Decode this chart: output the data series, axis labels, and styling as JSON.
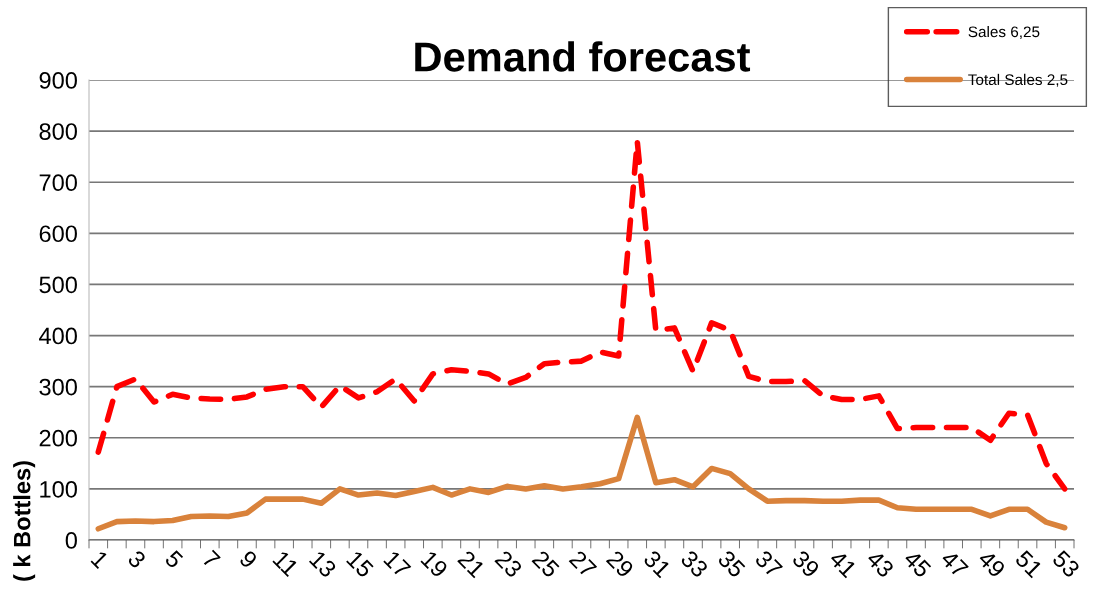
{
  "chart_data": {
    "type": "line",
    "title": "Demand forecast",
    "ylabel": "( k Bottles)",
    "categories": [
      "1",
      null,
      "3",
      null,
      "5",
      null,
      "7",
      null,
      "9",
      null,
      "11",
      null,
      "13",
      null,
      "15",
      null,
      "17",
      null,
      "19",
      null,
      "21",
      null,
      "23",
      null,
      "25",
      null,
      "27",
      null,
      "29",
      null,
      "31",
      null,
      "33",
      null,
      "35",
      null,
      "37",
      null,
      "39",
      null,
      "41",
      null,
      "43",
      null,
      "45",
      null,
      "47",
      null,
      "49",
      null,
      "51",
      null,
      "53"
    ],
    "series": [
      {
        "name": "Sales 6,25",
        "color": "#ff0000",
        "line_style": "dashed",
        "values": [
          172,
          300,
          315,
          270,
          285,
          278,
          276,
          275,
          280,
          295,
          300,
          300,
          260,
          302,
          278,
          290,
          315,
          272,
          325,
          333,
          330,
          325,
          305,
          318,
          345,
          348,
          350,
          368,
          360,
          780,
          410,
          415,
          330,
          425,
          410,
          320,
          310,
          310,
          312,
          282,
          275,
          275,
          282,
          218,
          220,
          220,
          220,
          220,
          195,
          248,
          245,
          150,
          100
        ]
      },
      {
        "name": "Total Sales 2,5",
        "color": "#d9823b",
        "line_style": "solid",
        "values": [
          22,
          36,
          37,
          36,
          38,
          46,
          47,
          46,
          53,
          80,
          80,
          80,
          72,
          100,
          88,
          92,
          87,
          95,
          103,
          88,
          100,
          93,
          105,
          100,
          106,
          100,
          104,
          110,
          120,
          240,
          112,
          118,
          104,
          140,
          130,
          100,
          76,
          77,
          77,
          76,
          76,
          78,
          78,
          63,
          60,
          60,
          60,
          60,
          47,
          60,
          60,
          35,
          24
        ]
      }
    ],
    "ylim": [
      0,
      900
    ],
    "yticks": [
      0,
      100,
      200,
      300,
      400,
      500,
      600,
      700,
      800,
      900
    ],
    "grid": "y",
    "legend": "top right",
    "marker": "none"
  }
}
